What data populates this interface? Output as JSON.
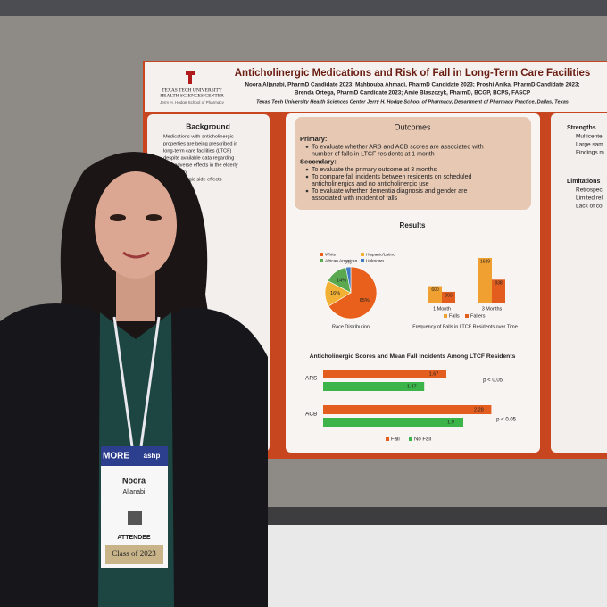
{
  "poster": {
    "logo": "TEXAS TECH UNIVERSITY",
    "logo_sub": "HEALTH SCIENCES CENTER",
    "school": "Jerry H. Hodge School of Pharmacy",
    "title": "Anticholinergic Medications and Risk of Fall in Long-Term Care Facilities",
    "authors": [
      "Noora Aljanabi, PharmD Candidate 2023; Mahbouba Ahmadi, PharmD Candidate 2023; Proshi Anika, PharmD Candidate 2023;",
      "Brenda Ortega, PharmD Candidate 2023; Amie Blaszczyk, PharmD, BCGP, BCPS, FASCP"
    ],
    "affiliation": "Texas Tech University Health Sciences Center Jerry H. Hodge School of Pharmacy, Department of Pharmacy Practice, Dallas, Texas",
    "background": {
      "heading": "Background",
      "lines": [
        "Medications with anticholinergic",
        "properties are being prescribed in",
        "long-term care facilities (LTCF)",
        "despite available data regarding",
        "their adverse effects in the elderly",
        "population.",
        "anticholinergic side effects"
      ]
    },
    "outcomes": {
      "heading": "Outcomes",
      "primary_label": "Primary:",
      "primary": [
        [
          "To evaluate whether ARS and ACB scores are associated with",
          "number of falls in LTCF residents at 1 month"
        ]
      ],
      "secondary_label": "Secondary:",
      "secondary": [
        [
          "To evaluate the primary outcome at 3 months"
        ],
        [
          "To compare fall incidents between residents on scheduled",
          "anticholinergics and no anticholinergic use"
        ],
        [
          "To evaluate whether dementia diagnosis and gender are",
          "associated with incident of falls"
        ]
      ]
    },
    "results_heading": "Results",
    "right": {
      "strengths": "Strengths",
      "strength_items": [
        "Multicente",
        "Large sam",
        "Findings m"
      ],
      "limitations": "Limitations",
      "limitation_items": [
        "Retrospec",
        "Limited reli",
        "Lack of co"
      ]
    }
  },
  "badge": {
    "event": "MORE",
    "org": "ashp",
    "first": "Noora",
    "last": "Aljanabi",
    "role": "ATTENDEE",
    "class": "Class of 2023"
  },
  "chart_data": [
    {
      "type": "pie",
      "categories": [
        "White",
        "Hispanic/Latino",
        "African American",
        "Unknown"
      ],
      "values": [
        65,
        16,
        14,
        3
      ],
      "value_labels": [
        "65%",
        "16%",
        "14%",
        "3%"
      ],
      "colors": [
        "#e8601c",
        "#f2b134",
        "#5aa84f",
        "#3f7cc4"
      ],
      "xlabel": "Race Distribution"
    },
    {
      "type": "bar",
      "categories": [
        "1 Month",
        "3 Months"
      ],
      "series": [
        {
          "name": "Falls",
          "color": "#f0a030",
          "values": [
            600,
            1629
          ]
        },
        {
          "name": "Fallers",
          "color": "#e35d1f",
          "values": [
            393,
            838
          ]
        }
      ],
      "xlabel": "Frequency of Falls in LTCF Residents over Time"
    },
    {
      "type": "hbar",
      "title": "Anticholinergic Scores and Mean Fall Incidents Among LTCF Residents",
      "categories": [
        "ARS",
        "ACB"
      ],
      "series": [
        {
          "name": "Fall",
          "color": "#e35d1f",
          "values": [
            1.67,
            2.28
          ]
        },
        {
          "name": "No Fall",
          "color": "#3cb44a",
          "values": [
            1.37,
            1.9
          ]
        }
      ],
      "annotations": [
        "p < 0.05",
        "p < 0.05"
      ]
    }
  ]
}
